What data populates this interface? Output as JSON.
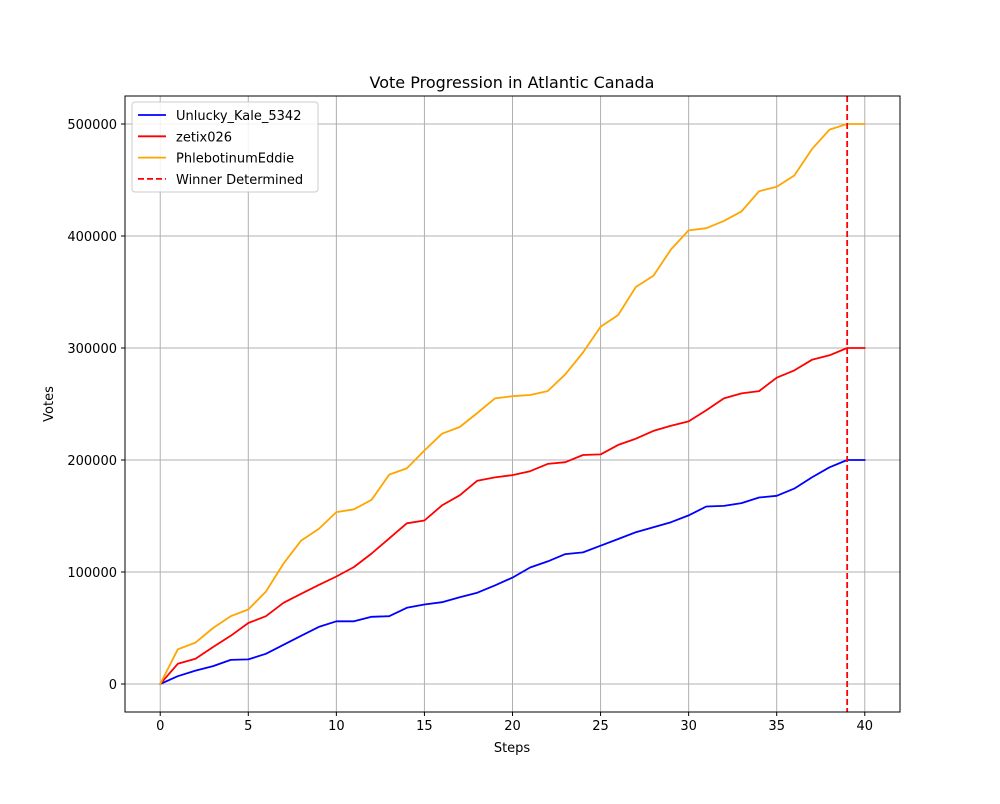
{
  "chart_data": {
    "type": "line",
    "title": "Vote Progression in Atlantic Canada",
    "xlabel": "Steps",
    "ylabel": "Votes",
    "xlim": [
      -2,
      42
    ],
    "ylim": [
      -25000,
      525000
    ],
    "xticks": [
      0,
      5,
      10,
      15,
      20,
      25,
      30,
      35,
      40
    ],
    "yticks": [
      0,
      100000,
      200000,
      300000,
      400000,
      500000
    ],
    "grid": true,
    "legend_position": "upper-left",
    "x": [
      0,
      1,
      2,
      3,
      4,
      5,
      6,
      7,
      8,
      9,
      10,
      11,
      12,
      13,
      14,
      15,
      16,
      17,
      18,
      19,
      20,
      21,
      22,
      23,
      24,
      25,
      26,
      27,
      28,
      29,
      30,
      31,
      32,
      33,
      34,
      35,
      36,
      37,
      38,
      39,
      40
    ],
    "series": [
      {
        "name": "Unlucky_Kale_5342",
        "color": "#0000ff",
        "style": "solid",
        "values": [
          0,
          7000,
          12000,
          16000,
          21500,
          22000,
          27000,
          35000,
          43000,
          51000,
          56000,
          56000,
          60000,
          60500,
          68000,
          71000,
          73000,
          77500,
          81500,
          88000,
          95000,
          104000,
          109500,
          116000,
          117500,
          123500,
          129500,
          135500,
          140000,
          144500,
          150500,
          158500,
          159000,
          161500,
          166500,
          168000,
          174500,
          184500,
          193500,
          200000,
          200000
        ]
      },
      {
        "name": "zetix026",
        "color": "#ff0000",
        "style": "solid",
        "values": [
          0,
          18000,
          22500,
          33000,
          43000,
          54500,
          60500,
          72500,
          80500,
          88500,
          96000,
          104500,
          116500,
          130000,
          143500,
          146000,
          159500,
          168500,
          181500,
          184500,
          186500,
          190000,
          196500,
          198000,
          204500,
          205000,
          213500,
          219000,
          226000,
          230500,
          234500,
          244500,
          255000,
          259500,
          261500,
          273500,
          280000,
          289500,
          293500,
          300000,
          300000
        ]
      },
      {
        "name": "PhlebotinumEddie",
        "color": "#ffa500",
        "style": "solid",
        "values": [
          0,
          31000,
          37000,
          50000,
          60500,
          66500,
          82500,
          107500,
          128000,
          138500,
          153500,
          156000,
          164500,
          187000,
          192500,
          208500,
          223500,
          229500,
          242000,
          255000,
          257000,
          258000,
          261500,
          276500,
          296000,
          319000,
          329500,
          354500,
          364500,
          388000,
          405000,
          407000,
          413500,
          422000,
          440000,
          444000,
          454000,
          477500,
          495000,
          500000,
          500000
        ]
      }
    ],
    "vlines": [
      {
        "name": "Winner Determined",
        "x": 39,
        "color": "#ff0000",
        "style": "dashed"
      }
    ]
  }
}
